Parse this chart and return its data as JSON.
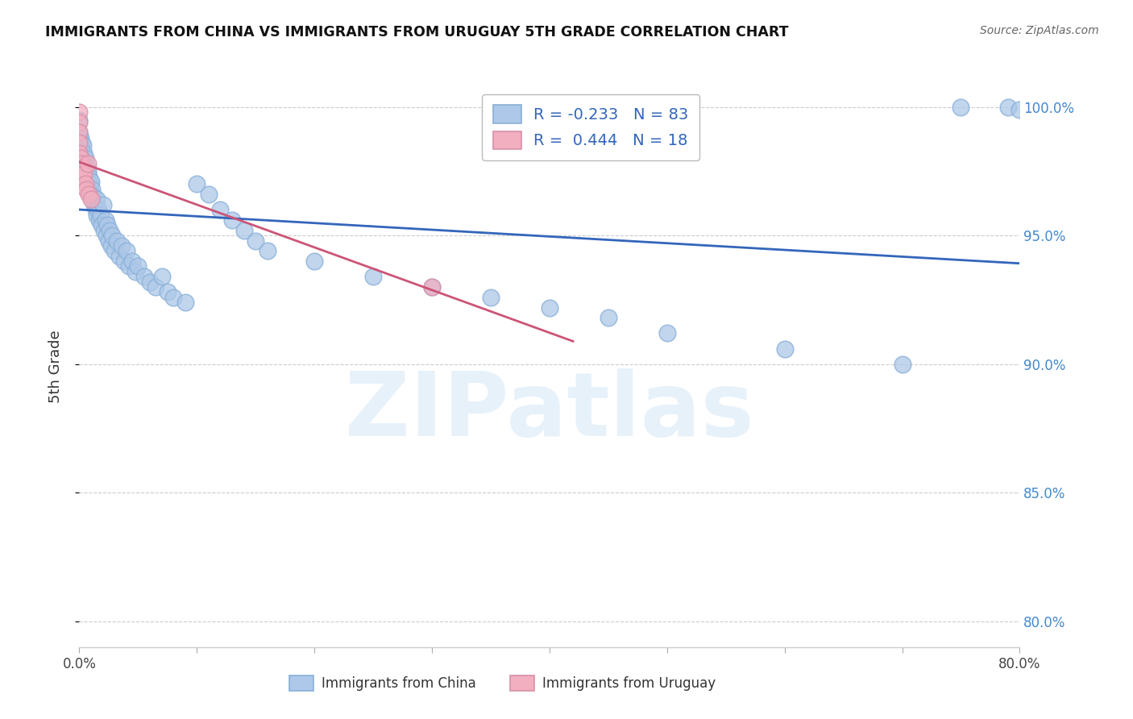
{
  "title": "IMMIGRANTS FROM CHINA VS IMMIGRANTS FROM URUGUAY 5TH GRADE CORRELATION CHART",
  "source_text": "Source: ZipAtlas.com",
  "ylabel": "5th Grade",
  "xlim": [
    0.0,
    0.8
  ],
  "ylim": [
    0.79,
    1.008
  ],
  "x_ticks": [
    0.0,
    0.1,
    0.2,
    0.3,
    0.4,
    0.5,
    0.6,
    0.7,
    0.8
  ],
  "x_tick_labels": [
    "0.0%",
    "",
    "",
    "",
    "",
    "",
    "",
    "",
    "80.0%"
  ],
  "y_ticks": [
    0.8,
    0.85,
    0.9,
    0.95,
    1.0
  ],
  "y_tick_labels": [
    "80.0%",
    "85.0%",
    "90.0%",
    "95.0%",
    "100.0%"
  ],
  "legend_china_R": "-0.233",
  "legend_china_N": "83",
  "legend_uruguay_R": "0.444",
  "legend_uruguay_N": "18",
  "blue_color": "#adc8e8",
  "pink_color": "#f2afc0",
  "blue_line_color": "#3366bb",
  "pink_line_color": "#cc5577",
  "watermark_text": "ZIPatlas",
  "china_scatter_x": [
    0.0,
    0.0,
    0.0,
    0.0,
    0.001,
    0.001,
    0.001,
    0.001,
    0.002,
    0.002,
    0.002,
    0.003,
    0.003,
    0.003,
    0.004,
    0.004,
    0.004,
    0.005,
    0.005,
    0.006,
    0.006,
    0.007,
    0.007,
    0.008,
    0.008,
    0.009,
    0.01,
    0.01,
    0.011,
    0.012,
    0.013,
    0.014,
    0.015,
    0.015,
    0.016,
    0.017,
    0.018,
    0.019,
    0.02,
    0.021,
    0.022,
    0.023,
    0.024,
    0.025,
    0.026,
    0.027,
    0.028,
    0.03,
    0.032,
    0.034,
    0.036,
    0.038,
    0.04,
    0.042,
    0.045,
    0.048,
    0.05,
    0.055,
    0.06,
    0.065,
    0.07,
    0.075,
    0.08,
    0.09,
    0.1,
    0.11,
    0.12,
    0.13,
    0.14,
    0.15,
    0.16,
    0.2,
    0.25,
    0.3,
    0.35,
    0.4,
    0.45,
    0.5,
    0.6,
    0.7,
    0.75,
    0.79,
    0.8
  ],
  "china_scatter_y": [
    0.995,
    0.99,
    0.984,
    0.978,
    0.988,
    0.984,
    0.98,
    0.976,
    0.986,
    0.981,
    0.976,
    0.985,
    0.98,
    0.975,
    0.982,
    0.977,
    0.972,
    0.98,
    0.974,
    0.977,
    0.972,
    0.975,
    0.97,
    0.973,
    0.968,
    0.97,
    0.971,
    0.966,
    0.968,
    0.965,
    0.962,
    0.96,
    0.964,
    0.958,
    0.96,
    0.956,
    0.958,
    0.954,
    0.962,
    0.952,
    0.956,
    0.95,
    0.954,
    0.948,
    0.952,
    0.946,
    0.95,
    0.944,
    0.948,
    0.942,
    0.946,
    0.94,
    0.944,
    0.938,
    0.94,
    0.936,
    0.938,
    0.934,
    0.932,
    0.93,
    0.934,
    0.928,
    0.926,
    0.924,
    0.97,
    0.966,
    0.96,
    0.956,
    0.952,
    0.948,
    0.944,
    0.94,
    0.934,
    0.93,
    0.926,
    0.922,
    0.918,
    0.912,
    0.906,
    0.9,
    1.0,
    1.0,
    0.999
  ],
  "uruguay_scatter_x": [
    0.0,
    0.0,
    0.0,
    0.0,
    0.0,
    0.001,
    0.001,
    0.002,
    0.002,
    0.003,
    0.003,
    0.004,
    0.005,
    0.006,
    0.007,
    0.008,
    0.01,
    0.3
  ],
  "uruguay_scatter_y": [
    0.998,
    0.994,
    0.99,
    0.986,
    0.982,
    0.98,
    0.976,
    0.978,
    0.974,
    0.976,
    0.972,
    0.974,
    0.97,
    0.968,
    0.978,
    0.966,
    0.964,
    0.93
  ]
}
